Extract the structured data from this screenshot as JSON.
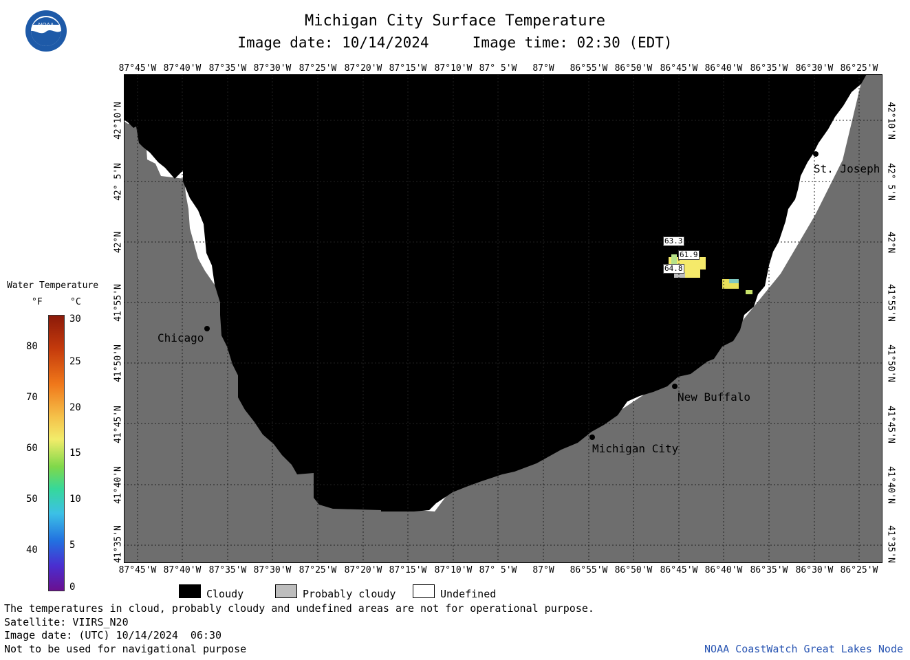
{
  "header": {
    "title": "Michigan City Surface Temperature",
    "image_date_label": "Image date: 10/14/2024",
    "image_time_label": "Image time: 02:30 (EDT)"
  },
  "logo": {
    "text": "NOAA",
    "icon": "noaa-logo-icon"
  },
  "map": {
    "longitude_ticks": [
      "87°45'W",
      "87°40'W",
      "87°35'W",
      "87°30'W",
      "87°25'W",
      "87°20'W",
      "87°15'W",
      "87°10'W",
      "87° 5'W",
      "87°W",
      "86°55'W",
      "86°50'W",
      "86°45'W",
      "86°40'W",
      "86°35'W",
      "86°30'W",
      "86°25'W"
    ],
    "latitude_ticks": [
      "42°10'N",
      "42° 5'N",
      "42°N",
      "41°55'N",
      "41°50'N",
      "41°45'N",
      "41°40'N",
      "41°35'N"
    ],
    "cities": [
      {
        "name": "St. Joseph"
      },
      {
        "name": "Chicago"
      },
      {
        "name": "New Buffalo"
      },
      {
        "name": "Michigan City"
      }
    ],
    "temperature_labels": [
      "63.3",
      "61.9",
      "64.8"
    ],
    "colors": {
      "land": "#6e6e6e",
      "cloud": "#000000",
      "undefined": "#ffffff",
      "probably_cloudy": "#bdbdbd",
      "warm_water": "#f5ea6a"
    }
  },
  "legend": {
    "title": "Water Temperature",
    "fahrenheit_unit": "°F",
    "celsius_unit": "°C",
    "fahrenheit_labels": [
      "80",
      "70",
      "60",
      "50",
      "40"
    ],
    "celsius_labels": [
      "30",
      "25",
      "20",
      "15",
      "10",
      "5",
      "0"
    ]
  },
  "key": {
    "cloudy": "Cloudy",
    "probably_cloudy": "Probably cloudy",
    "undefined": "Undefined"
  },
  "footer": {
    "disclaimer": "The temperatures in cloud, probably cloudy and undefined areas are not for operational purpose.",
    "satellite": "Satellite: VIIRS_N20",
    "utc_date": "Image date: (UTC) 10/14/2024  06:30",
    "nav_warning": "Not to be used for navigational purpose",
    "credit": "NOAA CoastWatch Great Lakes Node"
  }
}
